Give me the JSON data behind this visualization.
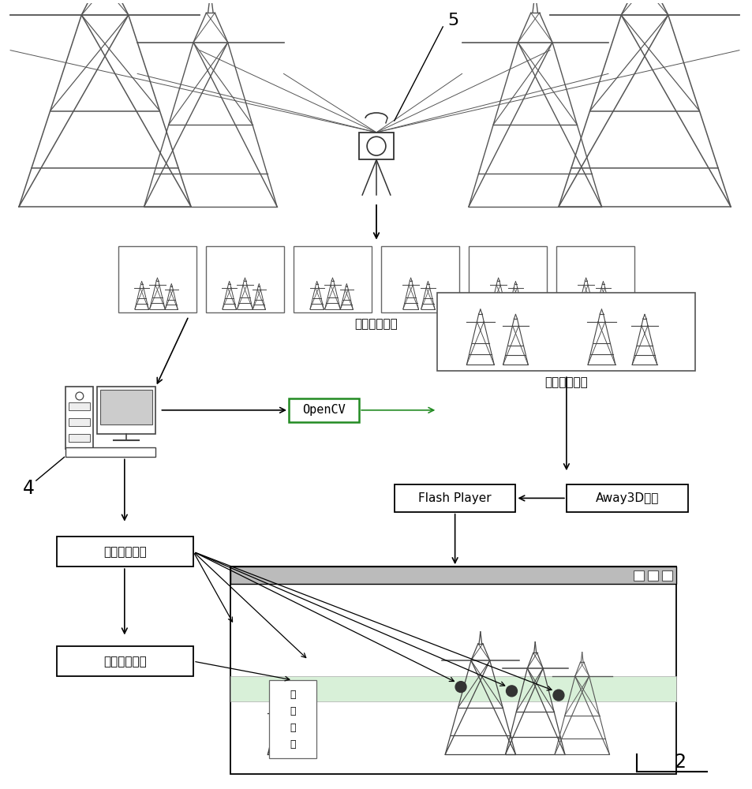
{
  "bg_color": "#ffffff",
  "line_color": "#000000",
  "label_5": "5",
  "label_4": "4",
  "label_2": "2",
  "label_photos": "局部照片组图",
  "label_panorama": "完整全景贴图",
  "label_opencv": "OpenCV",
  "label_flash": "Flash Player",
  "label_away3d": "Away3D引擎",
  "label_hotspot_pos": "热点位置编辑",
  "label_hotspot_param": "热点参数编辑",
  "label_perf": "性\n能\n参\n数",
  "tower_color": "#555555",
  "gray_color": "#888888"
}
